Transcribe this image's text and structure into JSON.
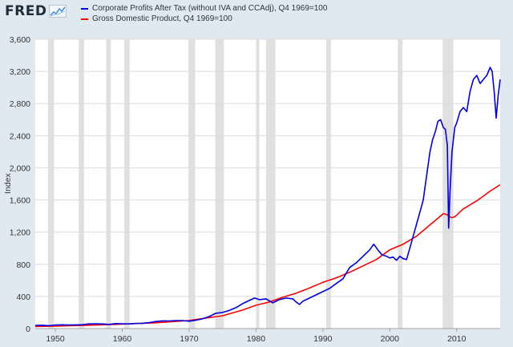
{
  "header": {
    "logo_text": "FRED",
    "logo_icon": "line-chart-icon",
    "accent_color": "#3b8ed0"
  },
  "chart_data": {
    "type": "line",
    "title": "",
    "xlabel": "",
    "ylabel": "Index",
    "xlim": [
      1947,
      2016.5
    ],
    "ylim": [
      0,
      3600
    ],
    "x_ticks": [
      1950,
      1960,
      1970,
      1980,
      1990,
      2000,
      2010
    ],
    "x_tick_labels": [
      "1950",
      "1960",
      "1970",
      "1980",
      "1990",
      "2000",
      "2010"
    ],
    "y_ticks": [
      0,
      400,
      800,
      1200,
      1600,
      2000,
      2400,
      2800,
      3200,
      3600
    ],
    "y_tick_labels": [
      "0",
      "400",
      "800",
      "1,200",
      "1,600",
      "2,000",
      "2,400",
      "2,800",
      "3,200",
      "3,600"
    ],
    "grid": true,
    "legend_position": "top-left",
    "recessions": [
      [
        1948.9,
        1949.8
      ],
      [
        1953.5,
        1954.3
      ],
      [
        1957.6,
        1958.3
      ],
      [
        1960.3,
        1961.1
      ],
      [
        1969.9,
        1970.9
      ],
      [
        1973.9,
        1975.2
      ],
      [
        1980.0,
        1980.5
      ],
      [
        1981.5,
        1982.9
      ],
      [
        1990.5,
        1991.2
      ],
      [
        2001.2,
        2001.9
      ],
      [
        2007.9,
        2009.5
      ]
    ],
    "recession_color": "#e0e0e0",
    "series": [
      {
        "name": "Corporate Profits After Tax (without IVA and CCAdj), Q4 1969=100",
        "color": "#0000e6",
        "x": [
          1947,
          1948,
          1949,
          1950,
          1951,
          1952,
          1953,
          1954,
          1955,
          1956,
          1957,
          1958,
          1959,
          1960,
          1961,
          1962,
          1963,
          1964,
          1965,
          1966,
          1967,
          1968,
          1969,
          1970,
          1971,
          1972,
          1973,
          1974,
          1975,
          1976,
          1977,
          1978,
          1979,
          1979.8,
          1980.5,
          1981.5,
          1982.5,
          1983.5,
          1984.5,
          1985.5,
          1986,
          1986.5,
          1987,
          1988,
          1989,
          1990,
          1991,
          1992,
          1993,
          1994,
          1995,
          1996,
          1997,
          1997.6,
          1998.3,
          1998.8,
          1999.5,
          2000,
          2000.5,
          2001,
          2001.5,
          2002,
          2002.5,
          2003,
          2003.5,
          2004,
          2004.5,
          2005,
          2005.5,
          2006,
          2006.4,
          2006.8,
          2007.2,
          2007.6,
          2008,
          2008.3,
          2008.6,
          2008.8,
          2009,
          2009.3,
          2009.7,
          2010,
          2010.5,
          2011,
          2011.5,
          2012,
          2012.5,
          2013,
          2013.5,
          2014,
          2014.5,
          2015,
          2015.3,
          2015.6,
          2015.9,
          2016.2,
          2016.5
        ],
        "values": [
          40,
          42,
          36,
          45,
          47,
          44,
          46,
          48,
          58,
          60,
          58,
          52,
          62,
          60,
          58,
          64,
          66,
          74,
          88,
          96,
          95,
          100,
          100,
          92,
          104,
          122,
          150,
          190,
          200,
          225,
          260,
          310,
          350,
          380,
          360,
          370,
          320,
          360,
          380,
          370,
          330,
          300,
          340,
          380,
          420,
          460,
          500,
          560,
          620,
          760,
          820,
          900,
          980,
          1050,
          970,
          920,
          900,
          880,
          890,
          850,
          900,
          870,
          860,
          1000,
          1150,
          1300,
          1450,
          1600,
          1900,
          2200,
          2350,
          2450,
          2580,
          2600,
          2500,
          2480,
          2280,
          1250,
          1700,
          2200,
          2500,
          2560,
          2700,
          2750,
          2700,
          2950,
          3100,
          3150,
          3050,
          3100,
          3150,
          3250,
          3200,
          2950,
          2620,
          2900,
          3100
        ]
      },
      {
        "name": "Gross Domestic Product, Q4 1969=100",
        "color": "#ff0000",
        "x": [
          1947,
          1950,
          1955,
          1960,
          1965,
          1969.9,
          1972,
          1975,
          1978,
          1980,
          1982,
          1984,
          1986,
          1988,
          1990,
          1992,
          1994,
          1996,
          1998,
          2000,
          2002,
          2004,
          2006,
          2008,
          2008.5,
          2009.2,
          2009.7,
          2011,
          2013,
          2015,
          2016.5
        ],
        "values": [
          25,
          30,
          42,
          55,
          72,
          100,
          125,
          160,
          230,
          290,
          330,
          390,
          440,
          505,
          575,
          630,
          700,
          780,
          860,
          980,
          1050,
          1150,
          1290,
          1430,
          1420,
          1380,
          1390,
          1490,
          1590,
          1710,
          1790
        ]
      }
    ]
  }
}
